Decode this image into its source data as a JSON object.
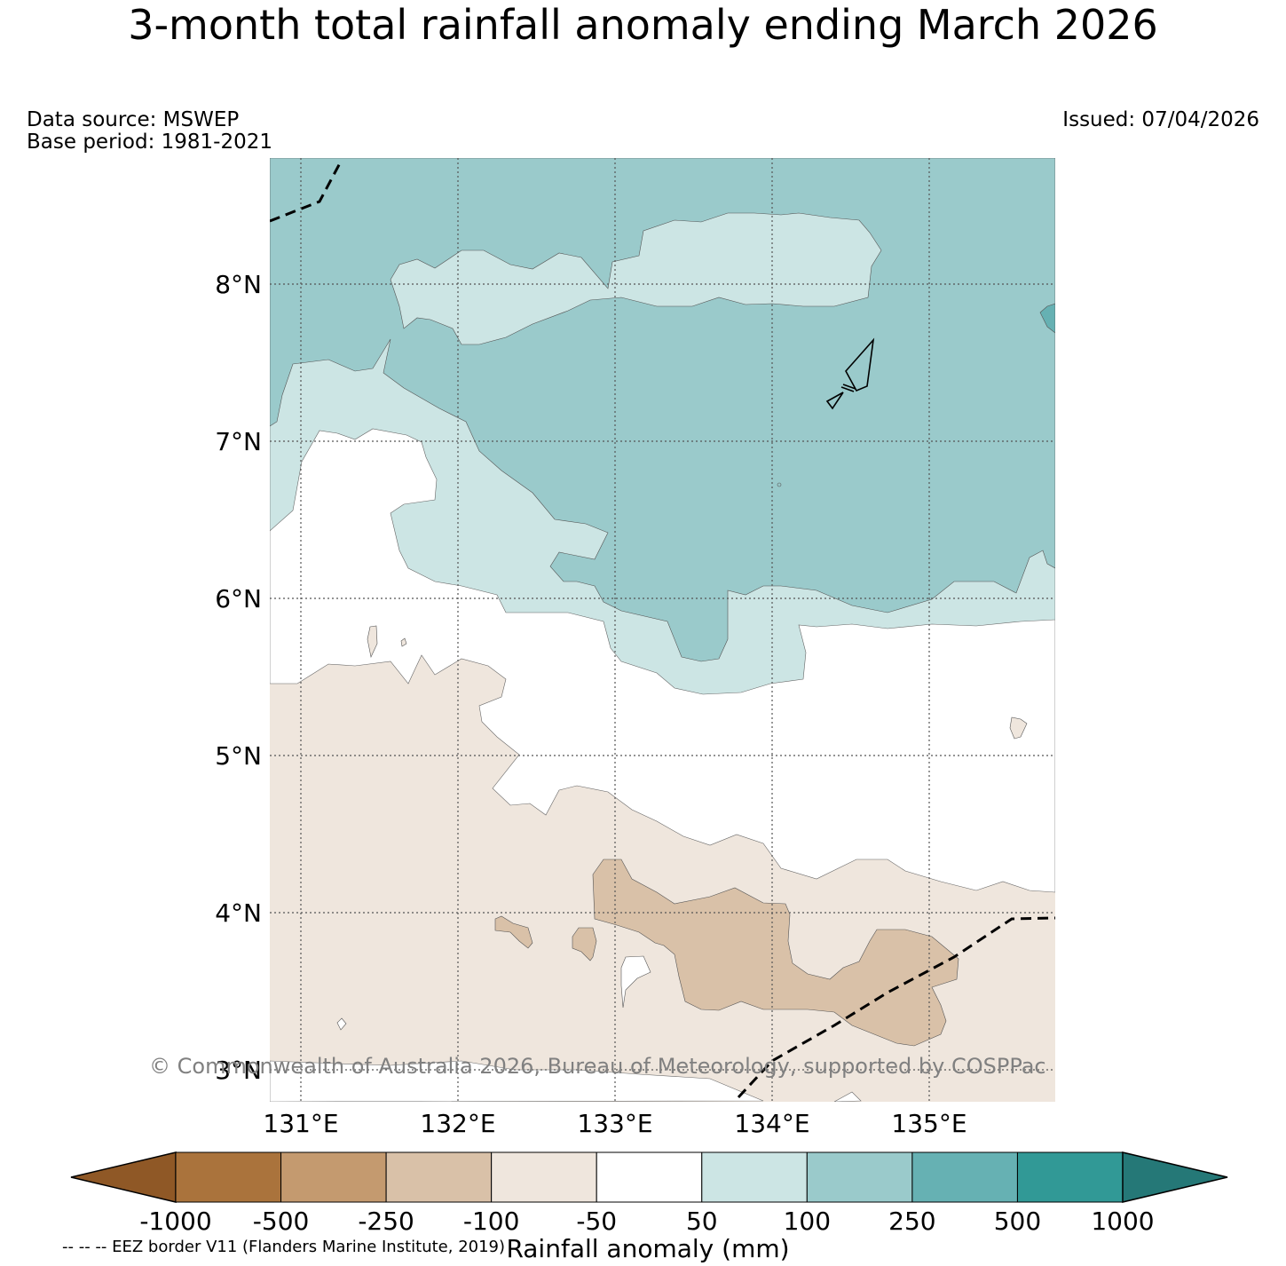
{
  "title": "3-month total rainfall anomaly ending March 2026",
  "data_source": "Data source: MSWEP",
  "base_period": "Base period: 1981-2021",
  "issued": "Issued: 07/04/2026",
  "copyright": "© Commonwealth of Australia 2026, Bureau of Meteorology, supported by COSPPac",
  "eez_note": "-- -- -- EEZ border V11 (Flanders Marine Institute, 2019)",
  "map": {
    "lat_labels": [
      "8°N",
      "7°N",
      "6°N",
      "5°N",
      "4°N",
      "3°N"
    ],
    "lon_labels": [
      "131°E",
      "132°E",
      "133°E",
      "134°E",
      "135°E"
    ]
  },
  "colorbar": {
    "label": "Rainfall anomaly (mm)",
    "ticks": [
      "-1000",
      "-500",
      "-250",
      "-100",
      "-50",
      "50",
      "100",
      "250",
      "500",
      "1000"
    ],
    "colors": [
      "#8f5826",
      "#aa733c",
      "#c49a6f",
      "#d9c1a8",
      "#efe6dd",
      "#ffffff",
      "#cce5e4",
      "#9acacb",
      "#66b1b3",
      "#319996",
      "#257877"
    ]
  }
}
